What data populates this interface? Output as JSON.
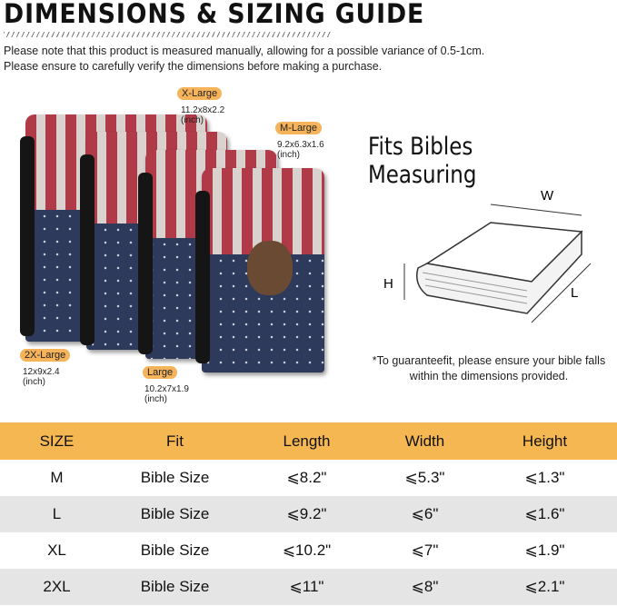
{
  "title": "DIMENSIONS & SIZING GUIDE",
  "notes": [
    "Please note that this product is measured manually, allowing for a possible variance of 0.5-1cm.",
    "Please ensure to carefully verify the dimensions before making a purchase."
  ],
  "sizes": [
    {
      "label": "X-Large",
      "dims": "11.2x8x2.2",
      "unit": "(inch)"
    },
    {
      "label": "M-Large",
      "dims": "9.2x6.3x1.6",
      "unit": "(inch)"
    },
    {
      "label": "2X-Large",
      "dims": "12x9x2.4",
      "unit": "(inch)"
    },
    {
      "label": "Large",
      "dims": "10.2x7x1.9",
      "unit": "(inch)"
    }
  ],
  "diagram": {
    "heading": "Fits Bibles Measuring",
    "w": "W",
    "h": "H",
    "l": "L"
  },
  "guarantee": [
    "*To guaranteefit, please ensure your bible falls",
    "within the dimensions provided."
  ],
  "table": {
    "headers": [
      "SIZE",
      "Fit",
      "Length",
      "Width",
      "Height"
    ],
    "rows": [
      [
        "M",
        "Bible Size",
        "⩽8.2\"",
        "⩽5.3\"",
        "⩽1.3\""
      ],
      [
        "L",
        "Bible Size",
        "⩽9.2\"",
        "⩽6\"",
        "⩽1.6\""
      ],
      [
        "XL",
        "Bible Size",
        "⩽10.2\"",
        "⩽7\"",
        "⩽1.9\""
      ],
      [
        "2XL",
        "Bible Size",
        "⩽11\"",
        "⩽8\"",
        "⩽2.1\""
      ]
    ]
  },
  "colors": {
    "accent": "#f5b752",
    "row_alt": "#e5e5e5"
  }
}
